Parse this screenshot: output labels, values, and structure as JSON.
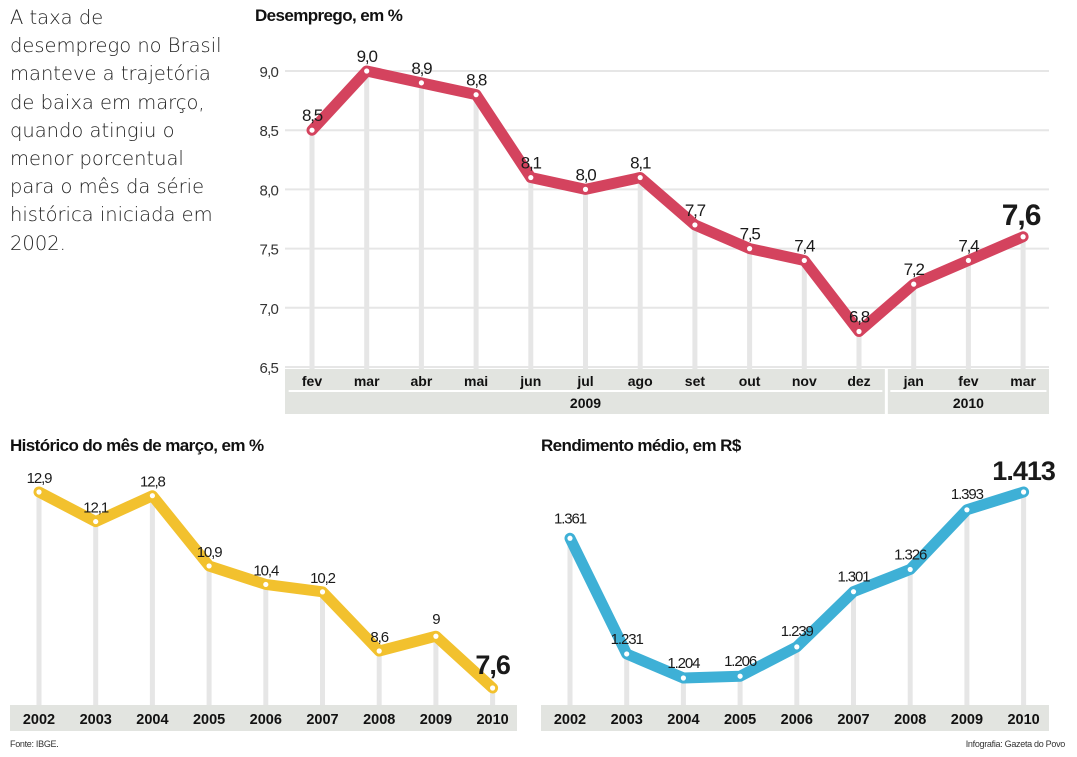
{
  "intro_text": "A taxa de desemprego no Brasil manteve a trajetória de baixa em março, quando atingiu o menor porcentual para o mês da série histórica iniciada em 2002.",
  "source": "Fonte: IBGE.",
  "credit": "Infografia: Gazeta do Povo",
  "colors": {
    "unemployment": "#d4435e",
    "march_history": "#f2c12e",
    "income": "#3eb0d6",
    "band": "#e2e4e0",
    "gridline": "#e6e6e6"
  },
  "chart_data": [
    {
      "type": "line",
      "title": "Desemprego, em %",
      "categories": [
        "fev",
        "mar",
        "abr",
        "mai",
        "jun",
        "jul",
        "ago",
        "set",
        "out",
        "nov",
        "dez",
        "jan",
        "fev",
        "mar"
      ],
      "values": [
        8.5,
        9.0,
        8.9,
        8.8,
        8.1,
        8.0,
        8.1,
        7.7,
        7.5,
        7.4,
        6.8,
        7.2,
        7.4,
        7.6
      ],
      "value_labels": [
        "8,5",
        "9,0",
        "8,9",
        "8,8",
        "8,1",
        "8,0",
        "8,1",
        "7,7",
        "7,5",
        "7,4",
        "6,8",
        "7,2",
        "7,4",
        "7,6"
      ],
      "yticks": [
        "9,0",
        "8,5",
        "8,0",
        "7,5",
        "7,0",
        "6,5"
      ],
      "ytick_values": [
        9.0,
        8.5,
        8.0,
        7.5,
        7.0,
        6.5
      ],
      "ylim": [
        6.5,
        9.0
      ],
      "year_groups": [
        {
          "label": "2009",
          "count": 11
        },
        {
          "label": "2010",
          "count": 3
        }
      ],
      "grid": true
    },
    {
      "type": "line",
      "title": "Histórico do mês de março, em %",
      "categories": [
        "2002",
        "2003",
        "2004",
        "2005",
        "2006",
        "2007",
        "2008",
        "2009",
        "2010"
      ],
      "values": [
        12.9,
        12.1,
        12.8,
        10.9,
        10.4,
        10.2,
        8.6,
        9.0,
        7.6
      ],
      "value_labels": [
        "12,9",
        "12,1",
        "12,8",
        "10,9",
        "10,4",
        "10,2",
        "8,6",
        "9",
        "7,6"
      ]
    },
    {
      "type": "line",
      "title": "Rendimento médio, em R$",
      "categories": [
        "2002",
        "2003",
        "2004",
        "2005",
        "2006",
        "2007",
        "2008",
        "2009",
        "2010"
      ],
      "values": [
        1361,
        1231,
        1204,
        1206,
        1239,
        1301,
        1326,
        1393,
        1413
      ],
      "value_labels": [
        "1.361",
        "1.231",
        "1.204",
        "1.206",
        "1.239",
        "1.301",
        "1.326",
        "1.393",
        "1.413"
      ]
    }
  ]
}
